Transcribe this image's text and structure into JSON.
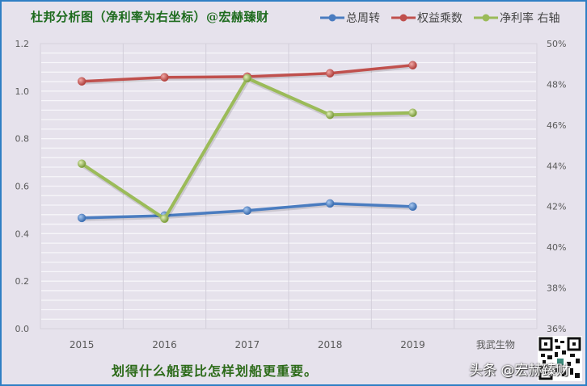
{
  "header": {
    "title": "杜邦分析图（净利率为右坐标）@宏赫臻财"
  },
  "legend": [
    {
      "label": "总周转",
      "color": "#4a7cc0"
    },
    {
      "label": "权益乘数",
      "color": "#c0504d"
    },
    {
      "label": "净利率 右轴",
      "color": "#9bbb59"
    }
  ],
  "footer": {
    "caption": "划得什么船要比怎样划船更重要。",
    "watermark": "头条 @宏赫臻财"
  },
  "colors": {
    "background": "#e6e2ec",
    "border": "#2f7fc4",
    "title": "#1e6b1e",
    "blue": "#4a7cc0",
    "red": "#c0504d",
    "green": "#9bbb59"
  },
  "chart_data": {
    "type": "line",
    "title": "杜邦分析图（净利率为右坐标）@宏赫臻财",
    "categories": [
      "2015",
      "2016",
      "2017",
      "2018",
      "2019",
      "我武生物"
    ],
    "series": [
      {
        "name": "总周转",
        "axis": "left",
        "color": "#4a7cc0",
        "values": [
          0.466,
          0.476,
          0.497,
          0.527,
          0.514,
          null
        ]
      },
      {
        "name": "权益乘数",
        "axis": "left",
        "color": "#c0504d",
        "values": [
          1.041,
          1.058,
          1.061,
          1.075,
          1.109,
          null
        ]
      },
      {
        "name": "净利率 右轴",
        "axis": "right",
        "color": "#9bbb59",
        "values": [
          0.441,
          0.414,
          0.483,
          0.465,
          0.466,
          null
        ]
      }
    ],
    "y_left": {
      "ticks": [
        "0.0",
        "0.2",
        "0.4",
        "0.6",
        "0.8",
        "1.0",
        "1.2"
      ],
      "ylim": [
        0,
        1.2
      ]
    },
    "y_right": {
      "ticks": [
        "36%",
        "38%",
        "40%",
        "42%",
        "44%",
        "46%",
        "48%",
        "50%"
      ],
      "ylim": [
        0.36,
        0.5
      ]
    },
    "xlabel": "",
    "ylabel": "",
    "grid": true,
    "legend_position": "top-right"
  }
}
